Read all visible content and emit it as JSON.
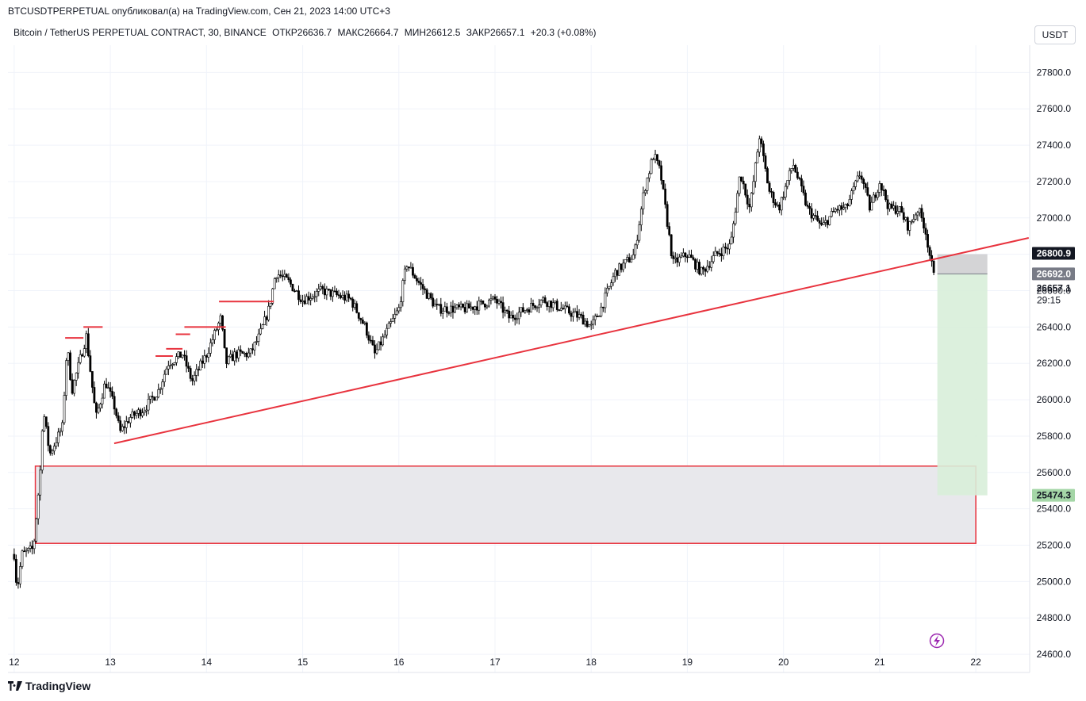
{
  "header": {
    "caption": "BTCUSDTPERPETUAL опубликовал(а) на TradingView.com, Сен 21, 2023 14:00 UTC+3",
    "symbol": "Bitcoin / TetherUS PERPETUAL CONTRACT, 30, BINANCE",
    "open": "ОТКР26636.7",
    "high": "МАКС26664.7",
    "low": "МИН26612.5",
    "close": "ЗАКР26657.1",
    "change": "+20.3 (+0.08%)"
  },
  "currency_button": "USDT",
  "footer": {
    "brand": "TradingView"
  },
  "colors": {
    "trendline": "#e8333e",
    "zone_fill": "#e8e8ec",
    "target_fill": "#d8eed9",
    "stop_fill": "#cfcfd1",
    "candle": "#000000",
    "grid": "#f0f3fa"
  },
  "chart_data": {
    "type": "candlestick",
    "interval": "30",
    "x_ticks": [
      "12",
      "13",
      "14",
      "15",
      "16",
      "17",
      "18",
      "19",
      "20",
      "21",
      "22"
    ],
    "y_ticks": [
      24600,
      24800,
      25000,
      25200,
      25400,
      25600,
      25800,
      26000,
      26200,
      26400,
      26600,
      26800,
      27000,
      27200,
      27400,
      27600,
      27800
    ],
    "ylim": [
      24500,
      27950
    ],
    "price_path": [
      {
        "day": 12.0,
        "price": 25150
      },
      {
        "day": 12.03,
        "price": 24950
      },
      {
        "day": 12.08,
        "price": 25150
      },
      {
        "day": 12.2,
        "price": 25180
      },
      {
        "day": 12.27,
        "price": 25600
      },
      {
        "day": 12.3,
        "price": 25950
      },
      {
        "day": 12.37,
        "price": 25700
      },
      {
        "day": 12.5,
        "price": 25850
      },
      {
        "day": 12.55,
        "price": 26300
      },
      {
        "day": 12.6,
        "price": 26050
      },
      {
        "day": 12.75,
        "price": 26350
      },
      {
        "day": 12.85,
        "price": 25900
      },
      {
        "day": 12.95,
        "price": 26100
      },
      {
        "day": 13.05,
        "price": 25950
      },
      {
        "day": 13.1,
        "price": 25820
      },
      {
        "day": 13.2,
        "price": 25900
      },
      {
        "day": 13.35,
        "price": 25950
      },
      {
        "day": 13.5,
        "price": 26050
      },
      {
        "day": 13.6,
        "price": 26200
      },
      {
        "day": 13.75,
        "price": 26250
      },
      {
        "day": 13.85,
        "price": 26100
      },
      {
        "day": 14.0,
        "price": 26250
      },
      {
        "day": 14.15,
        "price": 26450
      },
      {
        "day": 14.2,
        "price": 26200
      },
      {
        "day": 14.3,
        "price": 26250
      },
      {
        "day": 14.45,
        "price": 26250
      },
      {
        "day": 14.55,
        "price": 26350
      },
      {
        "day": 14.65,
        "price": 26500
      },
      {
        "day": 14.72,
        "price": 26700
      },
      {
        "day": 14.85,
        "price": 26650
      },
      {
        "day": 15.0,
        "price": 26550
      },
      {
        "day": 15.2,
        "price": 26600
      },
      {
        "day": 15.5,
        "price": 26550
      },
      {
        "day": 15.65,
        "price": 26400
      },
      {
        "day": 15.75,
        "price": 26250
      },
      {
        "day": 15.9,
        "price": 26400
      },
      {
        "day": 16.0,
        "price": 26500
      },
      {
        "day": 16.08,
        "price": 26750
      },
      {
        "day": 16.2,
        "price": 26650
      },
      {
        "day": 16.4,
        "price": 26500
      },
      {
        "day": 16.7,
        "price": 26500
      },
      {
        "day": 17.0,
        "price": 26550
      },
      {
        "day": 17.15,
        "price": 26450
      },
      {
        "day": 17.5,
        "price": 26550
      },
      {
        "day": 17.9,
        "price": 26450
      },
      {
        "day": 18.0,
        "price": 26400
      },
      {
        "day": 18.1,
        "price": 26500
      },
      {
        "day": 18.25,
        "price": 26700
      },
      {
        "day": 18.45,
        "price": 26800
      },
      {
        "day": 18.55,
        "price": 27150
      },
      {
        "day": 18.65,
        "price": 27350
      },
      {
        "day": 18.72,
        "price": 27250
      },
      {
        "day": 18.85,
        "price": 26750
      },
      {
        "day": 19.0,
        "price": 26800
      },
      {
        "day": 19.15,
        "price": 26700
      },
      {
        "day": 19.3,
        "price": 26800
      },
      {
        "day": 19.45,
        "price": 26850
      },
      {
        "day": 19.55,
        "price": 27250
      },
      {
        "day": 19.65,
        "price": 27050
      },
      {
        "day": 19.75,
        "price": 27450
      },
      {
        "day": 19.85,
        "price": 27150
      },
      {
        "day": 19.95,
        "price": 27050
      },
      {
        "day": 20.1,
        "price": 27300
      },
      {
        "day": 20.25,
        "price": 27050
      },
      {
        "day": 20.4,
        "price": 26950
      },
      {
        "day": 20.55,
        "price": 27050
      },
      {
        "day": 20.65,
        "price": 27050
      },
      {
        "day": 20.8,
        "price": 27250
      },
      {
        "day": 20.9,
        "price": 27050
      },
      {
        "day": 21.0,
        "price": 27200
      },
      {
        "day": 21.1,
        "price": 27050
      },
      {
        "day": 21.2,
        "price": 27050
      },
      {
        "day": 21.3,
        "price": 26950
      },
      {
        "day": 21.4,
        "price": 27050
      },
      {
        "day": 21.47,
        "price": 26950
      },
      {
        "day": 21.52,
        "price": 26800
      },
      {
        "day": 21.57,
        "price": 26657
      }
    ],
    "horizontal_levels": [
      {
        "from_day": 12.53,
        "to_day": 12.72,
        "price": 26340
      },
      {
        "from_day": 12.72,
        "to_day": 12.92,
        "price": 26400
      },
      {
        "from_day": 13.47,
        "to_day": 13.65,
        "price": 26240
      },
      {
        "from_day": 13.58,
        "to_day": 13.75,
        "price": 26280
      },
      {
        "from_day": 13.68,
        "to_day": 13.83,
        "price": 26360
      },
      {
        "from_day": 13.77,
        "to_day": 14.2,
        "price": 26400
      },
      {
        "from_day": 14.13,
        "to_day": 14.7,
        "price": 26540
      }
    ],
    "trendline": {
      "from": {
        "day": 13.04,
        "price": 25760
      },
      "to": {
        "day": 22.55,
        "price": 26890
      }
    },
    "demand_zone": {
      "from_day": 12.22,
      "to_day": 22.0,
      "top": 25635,
      "bottom": 25210
    },
    "position": {
      "from_day": 21.6,
      "to_day": 22.12,
      "stop": 26800.9,
      "entry": 26692.0,
      "target": 25474.3
    },
    "price_tags": {
      "stop": "26800.9",
      "entry": "26692.0",
      "last": "26657.1",
      "countdown": "29:15",
      "target": "25474.3"
    }
  }
}
